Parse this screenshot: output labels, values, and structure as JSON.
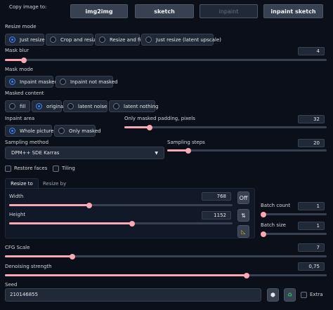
{
  "copy_image": {
    "label": "Copy image to:",
    "buttons": [
      "img2img",
      "sketch",
      "inpaint",
      "inpaint sketch"
    ]
  },
  "resize_mode": {
    "label": "Resize mode",
    "options": [
      "Just resize",
      "Crop and resize",
      "Resize and fill",
      "Just resize (latent upscale)"
    ],
    "selected": "Just resize"
  },
  "mask_blur": {
    "label": "Mask blur",
    "value": "4",
    "fraction": 0.06
  },
  "mask_mode": {
    "label": "Mask mode",
    "options": [
      "Inpaint masked",
      "Inpaint not masked"
    ],
    "selected": "Inpaint masked"
  },
  "masked_content": {
    "label": "Masked content",
    "options": [
      "fill",
      "original",
      "latent noise",
      "latent nothing"
    ],
    "selected": "original"
  },
  "inpaint_area": {
    "label": "Inpaint area",
    "options": [
      "Whole picture",
      "Only masked"
    ],
    "selected": "Whole picture"
  },
  "only_masked_padding": {
    "label": "Only masked padding, pixels",
    "value": "32",
    "fraction": 0.125
  },
  "sampling_method": {
    "label": "Sampling method",
    "value": "DPM++ SDE Karras"
  },
  "sampling_steps": {
    "label": "Sampling steps",
    "value": "20",
    "fraction": 0.13
  },
  "checkboxes": {
    "restore_faces": "Restore faces",
    "tiling": "Tiling"
  },
  "resize_tabs": [
    "Resize to",
    "Resize by"
  ],
  "width": {
    "label": "Width",
    "value": "768",
    "fraction": 0.36
  },
  "height": {
    "label": "Height",
    "value": "1152",
    "fraction": 0.55
  },
  "swap_buttons": {
    "off": "Off",
    "swap_icon": "swap-vertical-icon",
    "ruler_icon": "triangle-ruler-icon"
  },
  "batch_count": {
    "label": "Batch count",
    "value": "1",
    "fraction": 0.0
  },
  "batch_size": {
    "label": "Batch size",
    "value": "1",
    "fraction": 0.0
  },
  "cfg_scale": {
    "label": "CFG Scale",
    "value": "7",
    "fraction": 0.21
  },
  "denoising_strength": {
    "label": "Denoising strength",
    "value": "0,75",
    "fraction": 0.75
  },
  "seed": {
    "label": "Seed",
    "value": "210146855",
    "extra_label": "Extra",
    "dice_icon": "dice-icon",
    "recycle_icon": "recycle-icon"
  },
  "colors": {
    "accent": "#f9a8b4",
    "background": "#0b0f19",
    "radio_selected": "#3b82f6",
    "recycle": "#22c55e"
  }
}
